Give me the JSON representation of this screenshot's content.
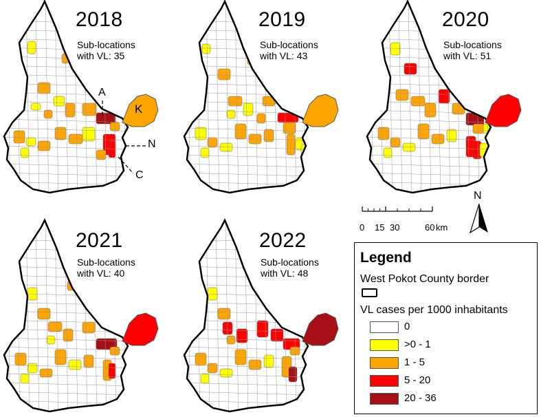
{
  "panels": [
    {
      "year": "2018",
      "sub_line1": "Sub-locations",
      "sub_line2": "with VL: 35"
    },
    {
      "year": "2019",
      "sub_line1": "Sub-locations",
      "sub_line2": "with VL: 43"
    },
    {
      "year": "2020",
      "sub_line1": "Sub-locations",
      "sub_line2": "with VL: 51"
    },
    {
      "year": "2021",
      "sub_line1": "Sub-locations",
      "sub_line2": "with VL: 40"
    },
    {
      "year": "2022",
      "sub_line1": "Sub-locations",
      "sub_line2": "with VL: 48"
    }
  ],
  "annotations": {
    "a": "A",
    "k": "K",
    "n": "N",
    "c": "C"
  },
  "scalebar": {
    "ticks": [
      "0",
      "15",
      "30",
      "60"
    ],
    "unit": "km"
  },
  "north_label": "N",
  "legend": {
    "title": "Legend",
    "border_label": "West Pokot County border",
    "cases_label": "VL cases per 1000 inhabitants",
    "classes": [
      {
        "label": "0",
        "color": "#ffffff"
      },
      {
        "label": ">0 - 1",
        "color": "#ffff00"
      },
      {
        "label": "1 - 5",
        "color": "#ffa500"
      },
      {
        "label": "5 - 20",
        "color": "#ff0000"
      },
      {
        "label": "20 - 36",
        "color": "#a50f15"
      }
    ]
  }
}
